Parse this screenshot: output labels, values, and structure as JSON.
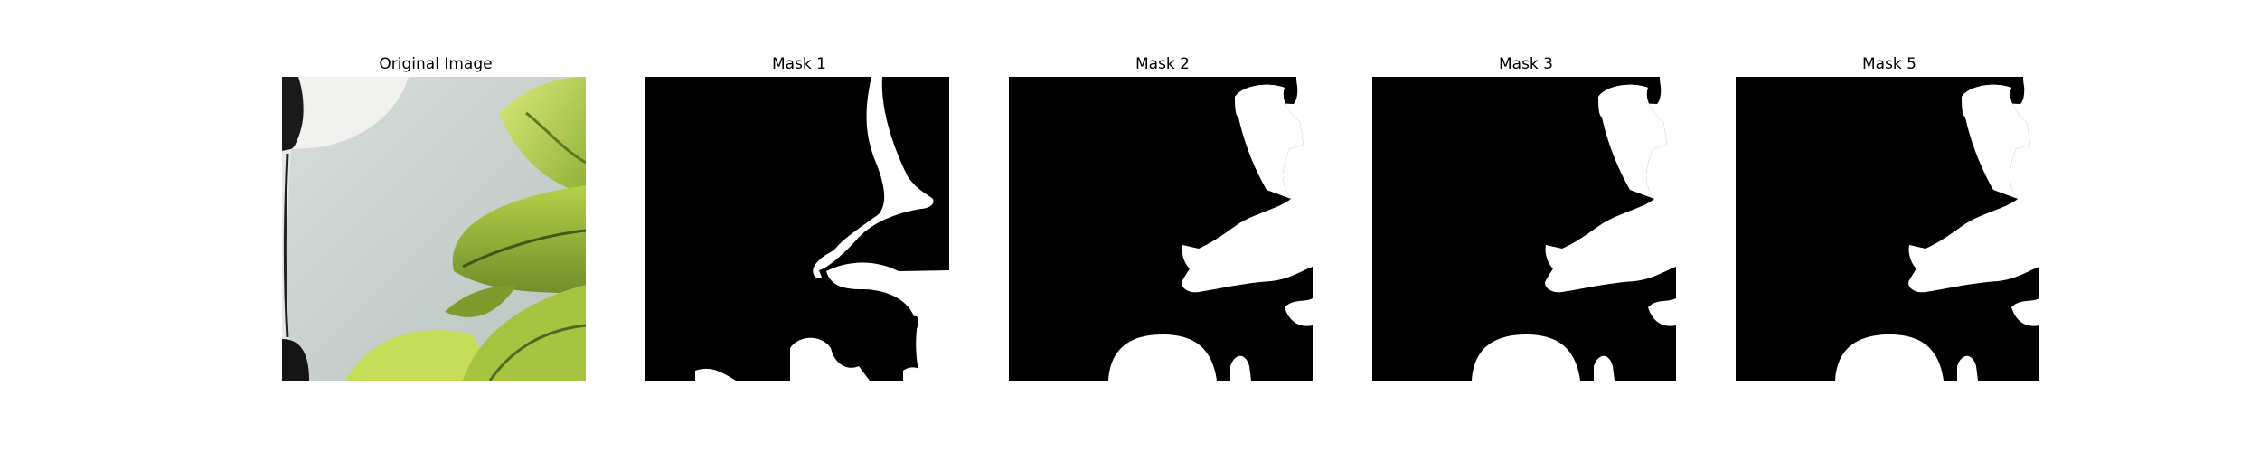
{
  "figure": {
    "panels": [
      {
        "title": "Original Image",
        "icon": "photo-image"
      },
      {
        "title": "Mask 1",
        "icon": "mask-image"
      },
      {
        "title": "Mask 2",
        "icon": "mask-image"
      },
      {
        "title": "Mask 3",
        "icon": "mask-image"
      },
      {
        "title": "Mask 5",
        "icon": "mask-image"
      }
    ]
  },
  "colors": {
    "mask_background": "#000000",
    "mask_foreground": "#ffffff",
    "photo_background": "#c9d2cd",
    "leaf_bright": "#c4dc52",
    "leaf_mid": "#9cbc3c",
    "leaf_dark": "#4d6a22"
  }
}
